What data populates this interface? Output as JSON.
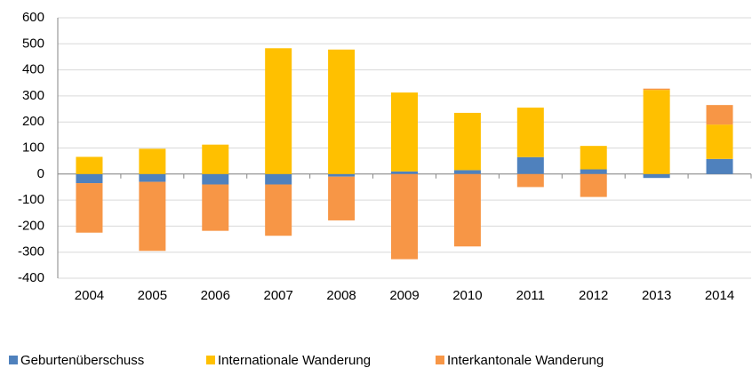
{
  "chart_data": {
    "type": "stacked_bar",
    "categories": [
      "2004",
      "2005",
      "2006",
      "2007",
      "2008",
      "2009",
      "2010",
      "2011",
      "2012",
      "2013",
      "2014"
    ],
    "series": [
      {
        "name": "Geburtenüberschuss",
        "color": "#4f81bd",
        "values": [
          -35,
          -30,
          -40,
          -40,
          -10,
          10,
          15,
          65,
          18,
          -15,
          58
        ]
      },
      {
        "name": "Internationale Wanderung",
        "color": "#ffc000",
        "values": [
          66,
          97,
          113,
          483,
          478,
          303,
          220,
          190,
          90,
          323,
          132
        ]
      },
      {
        "name": "Interkantonale Wanderung",
        "color": "#f79646",
        "values": [
          -190,
          -265,
          -178,
          -197,
          -168,
          -327,
          -278,
          -50,
          -88,
          5,
          75
        ]
      }
    ],
    "ylim": [
      -400,
      600
    ],
    "yticks": [
      -400,
      -300,
      -200,
      -100,
      0,
      100,
      200,
      300,
      400,
      500,
      600
    ],
    "grid": true,
    "legend": "bottom"
  }
}
